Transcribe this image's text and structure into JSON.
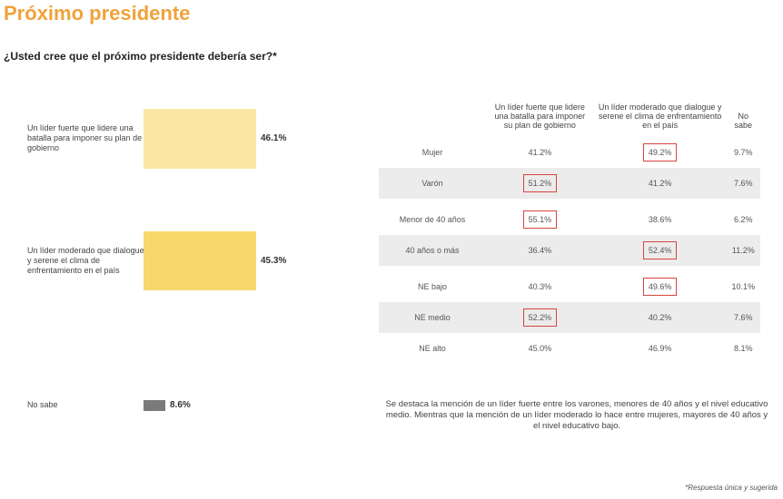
{
  "title": "Próximo presidente",
  "question": "¿Usted cree que el próximo presidente debería ser?*",
  "chart_data": {
    "type": "bar",
    "orientation": "vertical",
    "categories": [
      "Un líder fuerte que lidere una batalla para imponer su plan de gobierno",
      "Un líder moderado que dialogue y serene el clima de enfrentamiento en el país",
      "No sabe"
    ],
    "values": [
      46.1,
      45.3,
      8.6
    ],
    "value_labels": [
      "46.1%",
      "45.3%",
      "8.6%"
    ],
    "colors": [
      "#fae7a3",
      "#f7d86a",
      "#7a7a7a"
    ],
    "ylim": [
      0,
      50
    ]
  },
  "table": {
    "columns": [
      "Un líder fuerte que lidere una batalla para imponer su plan de gobierno",
      "Un líder moderado que dialogue y serene el clima de enfrentamiento en el país",
      "No sabe"
    ],
    "rows": [
      {
        "segment": "Mujer",
        "values": [
          "41.2%",
          "49.2%",
          "9.7%"
        ],
        "highlight": [
          1
        ]
      },
      {
        "segment": "Varón",
        "values": [
          "51.2%",
          "41.2%",
          "7.6%"
        ],
        "highlight": [
          0
        ]
      },
      {
        "segment": "Menor de 40 años",
        "values": [
          "55.1%",
          "38.6%",
          "6.2%"
        ],
        "highlight": [
          0
        ]
      },
      {
        "segment": "40 años o más",
        "values": [
          "36.4%",
          "52.4%",
          "11.2%"
        ],
        "highlight": [
          1
        ]
      },
      {
        "segment": "NE bajo",
        "values": [
          "40.3%",
          "49.6%",
          "10.1%"
        ],
        "highlight": [
          1
        ]
      },
      {
        "segment": "NE medio",
        "values": [
          "52.2%",
          "40.2%",
          "7.6%"
        ],
        "highlight": [
          0
        ]
      },
      {
        "segment": "NE alto",
        "values": [
          "45.0%",
          "46.9%",
          "8.1%"
        ],
        "highlight": []
      }
    ],
    "highlight_color": "#d8443e"
  },
  "note": "Se destaca la mención de un líder fuerte entre los varones, menores de 40 años y el nivel educativo medio. Mientras que la mención de un líder moderado lo hace entre mujeres, mayores de 40 años y el nivel educativo bajo.",
  "footnote": "*Respuesta única y sugerida"
}
